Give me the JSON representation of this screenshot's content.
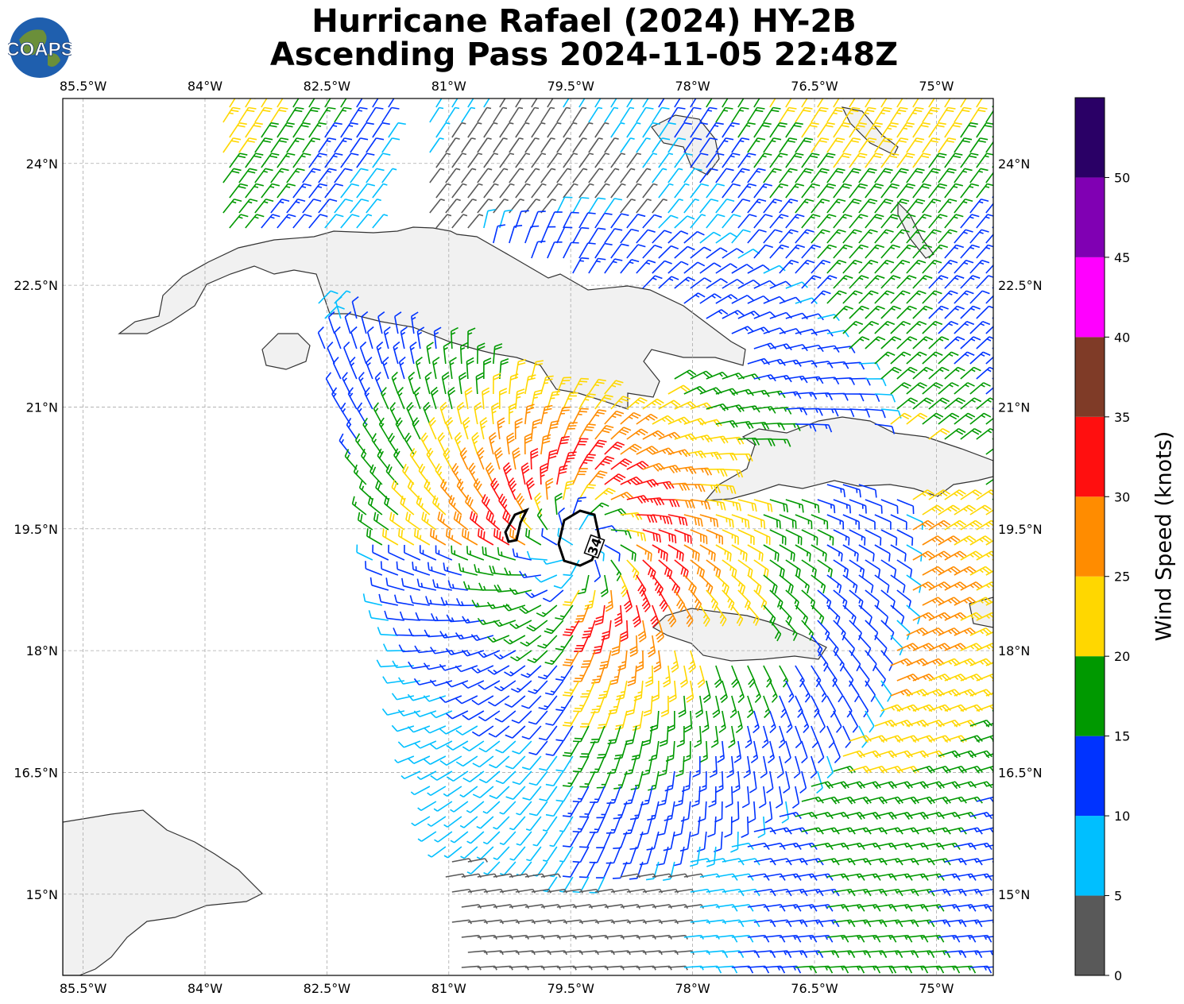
{
  "title": {
    "line1": "Hurricane Rafael (2024) HY-2B",
    "line2": "Ascending Pass 2024-11-05 22:48Z"
  },
  "logo": {
    "text": "COAPS"
  },
  "map": {
    "lon_ticks": [
      "85.5°W",
      "84°W",
      "82.5°W",
      "81°W",
      "79.5°W",
      "78°W",
      "76.5°W",
      "75°W"
    ],
    "lat_ticks": [
      "24°N",
      "22.5°N",
      "21°N",
      "19.5°N",
      "18°N",
      "16.5°N",
      "15°N"
    ],
    "lon_range": [
      -85.75,
      -74.3
    ],
    "lat_range": [
      14.0,
      24.8
    ],
    "contour_label": "34",
    "storm_center": {
      "lon": -79.4,
      "lat": 19.3
    }
  },
  "colorbar": {
    "label": "Wind Speed (knots)",
    "ticks": [
      "0",
      "5",
      "10",
      "15",
      "20",
      "25",
      "30",
      "35",
      "40",
      "45",
      "50"
    ],
    "bins": [
      {
        "from": 0,
        "to": 5,
        "color": "#595959"
      },
      {
        "from": 5,
        "to": 10,
        "color": "#00bfff"
      },
      {
        "from": 10,
        "to": 15,
        "color": "#0033ff"
      },
      {
        "from": 15,
        "to": 20,
        "color": "#009900"
      },
      {
        "from": 20,
        "to": 25,
        "color": "#ffd700"
      },
      {
        "from": 25,
        "to": 30,
        "color": "#ff8c00"
      },
      {
        "from": 30,
        "to": 35,
        "color": "#ff0f0f"
      },
      {
        "from": 35,
        "to": 40,
        "color": "#7f3b27"
      },
      {
        "from": 40,
        "to": 45,
        "color": "#ff00ff"
      },
      {
        "from": 45,
        "to": 50,
        "color": "#8000b3"
      },
      {
        "from": 50,
        "to": 55,
        "color": "#2a0066"
      }
    ]
  }
}
